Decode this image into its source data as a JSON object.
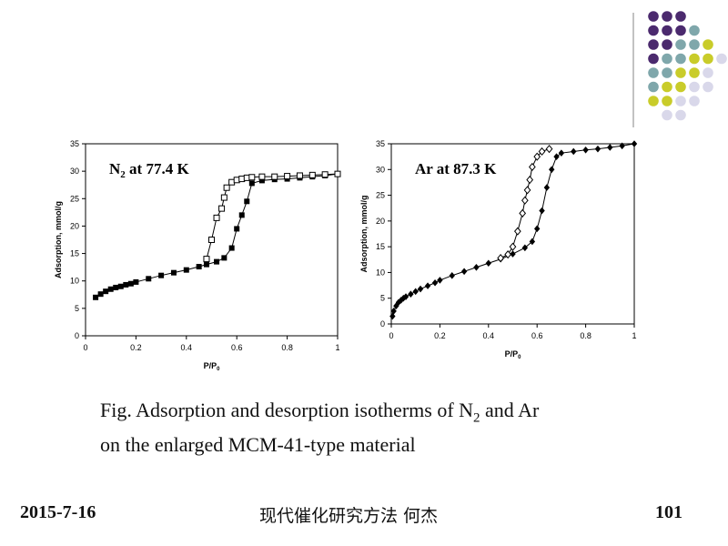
{
  "slide": {
    "caption": {
      "line1_prefix": "Fig. Adsorption and desorption isotherms of N",
      "line1_sub": "2",
      "line1_suffix": " and Ar",
      "line2": "on the enlarged MCM-41-type material"
    },
    "footer": {
      "date": "2015-7-16",
      "title": "现代催化研究方法  何杰",
      "page": "101"
    },
    "decor_colors": {
      "purple": "#4b2a6e",
      "teal": "#7fa7ab",
      "yellow": "#c9cc2a",
      "lavender": "#d9d8ea"
    }
  },
  "chart_data": [
    {
      "type": "scatter",
      "title_main": "N",
      "title_sub": "2",
      "title_rest": " at 77.4 K",
      "ylabel": "Adsorption, mmol/g",
      "xlabel_main": "P/P",
      "xlabel_sub": "0",
      "xlim": [
        0,
        1
      ],
      "ylim": [
        0,
        35
      ],
      "xticks": [
        "0",
        "0.2",
        "0.4",
        "0.6",
        "0.8",
        "1"
      ],
      "yticks": [
        "0",
        "5",
        "10",
        "15",
        "20",
        "25",
        "30",
        "35"
      ],
      "series": [
        {
          "marker": "filled-square",
          "x": [
            0.04,
            0.06,
            0.08,
            0.1,
            0.12,
            0.14,
            0.16,
            0.18,
            0.2,
            0.25,
            0.3,
            0.35,
            0.4,
            0.45,
            0.48,
            0.52,
            0.55,
            0.58,
            0.6,
            0.62,
            0.64,
            0.66,
            0.7,
            0.75,
            0.8,
            0.85,
            0.9,
            0.95,
            1.0
          ],
          "y": [
            7.0,
            7.6,
            8.1,
            8.5,
            8.8,
            9.0,
            9.3,
            9.5,
            9.8,
            10.4,
            11.0,
            11.5,
            12.0,
            12.6,
            13.0,
            13.5,
            14.2,
            16.0,
            19.5,
            22.0,
            24.5,
            27.8,
            28.3,
            28.5,
            28.6,
            28.8,
            29.0,
            29.2,
            29.5
          ]
        },
        {
          "marker": "open-square",
          "x": [
            0.48,
            0.5,
            0.52,
            0.54,
            0.55,
            0.56,
            0.58,
            0.6,
            0.62,
            0.64,
            0.66,
            0.7,
            0.75,
            0.8,
            0.85,
            0.9,
            0.95,
            1.0
          ],
          "y": [
            14.0,
            17.5,
            21.5,
            23.2,
            25.2,
            27.0,
            28.0,
            28.4,
            28.6,
            28.8,
            28.9,
            29.0,
            29.0,
            29.1,
            29.2,
            29.3,
            29.4,
            29.5
          ]
        }
      ]
    },
    {
      "type": "scatter",
      "title": "Ar at 87.3 K",
      "ylabel": "Adsorption, mmol/g",
      "xlabel_main": "P/P",
      "xlabel_sub": "0",
      "xlim": [
        0,
        1
      ],
      "ylim": [
        0,
        35
      ],
      "xticks": [
        "0",
        "0.2",
        "0.4",
        "0.6",
        "0.8",
        "1"
      ],
      "yticks": [
        "0",
        "5",
        "10",
        "15",
        "20",
        "25",
        "30",
        "35"
      ],
      "series": [
        {
          "marker": "filled-diamond",
          "x": [
            0.005,
            0.01,
            0.02,
            0.03,
            0.04,
            0.05,
            0.06,
            0.08,
            0.1,
            0.12,
            0.15,
            0.18,
            0.2,
            0.25,
            0.3,
            0.35,
            0.4,
            0.45,
            0.5,
            0.55,
            0.58,
            0.6,
            0.62,
            0.64,
            0.66,
            0.68,
            0.7,
            0.75,
            0.8,
            0.85,
            0.9,
            0.95,
            1.0
          ],
          "y": [
            1.5,
            2.5,
            3.5,
            4.2,
            4.6,
            5.0,
            5.3,
            5.8,
            6.3,
            6.8,
            7.4,
            8.0,
            8.5,
            9.4,
            10.2,
            11.0,
            11.8,
            12.6,
            13.6,
            14.8,
            16.0,
            18.5,
            22.0,
            26.5,
            30.0,
            32.5,
            33.2,
            33.5,
            33.8,
            34.0,
            34.3,
            34.6,
            35.0
          ]
        },
        {
          "marker": "open-diamond",
          "x": [
            0.45,
            0.48,
            0.5,
            0.52,
            0.54,
            0.55,
            0.56,
            0.57,
            0.58,
            0.6,
            0.62,
            0.65
          ],
          "y": [
            12.8,
            13.5,
            15.0,
            18.0,
            21.5,
            24.0,
            26.0,
            28.0,
            30.5,
            32.5,
            33.5,
            34.0
          ]
        }
      ]
    }
  ]
}
